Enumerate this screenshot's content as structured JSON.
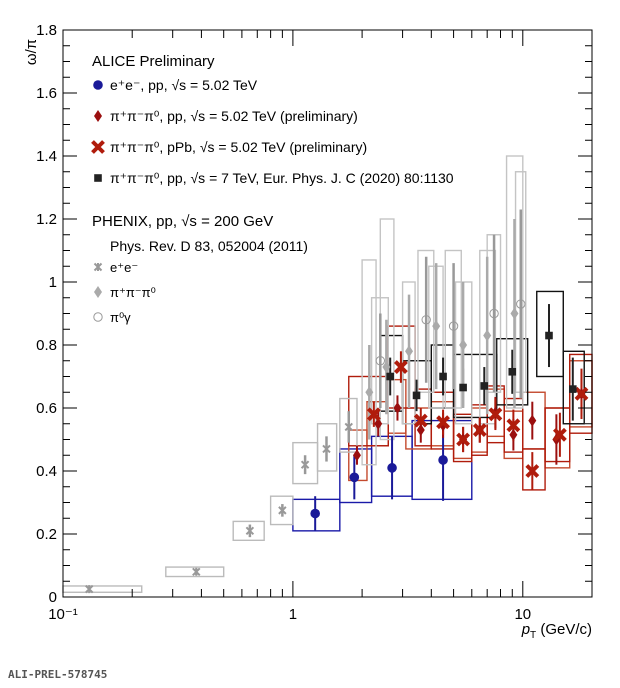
{
  "footer_label": "ALI-PREL-578745",
  "chart_data": {
    "type": "scatter",
    "title": "",
    "xlabel": "p_T (GeV/c)",
    "ylabel": "ω/π",
    "xscale": "log",
    "xlim": [
      0.1,
      20
    ],
    "ylim": [
      0,
      1.8
    ],
    "xticks": [
      {
        "v": 0.1,
        "label": "10⁻¹"
      },
      {
        "v": 1,
        "label": "1"
      },
      {
        "v": 10,
        "label": "10"
      }
    ],
    "yticks": [
      0,
      0.2,
      0.4,
      0.6,
      0.8,
      1,
      1.2,
      1.4,
      1.6,
      1.8
    ],
    "ytick_labels": [
      "0",
      "0.2",
      "0.4",
      "0.6",
      "0.8",
      "1",
      "1.2",
      "1.4",
      "1.6",
      "1.8"
    ],
    "legend": {
      "alice_header": "ALICE Preliminary",
      "phenix_header": "PHENIX, pp, √s = 200 GeV",
      "phenix_ref": "Phys. Rev. D 83, 052004 (2011)",
      "entries": [
        {
          "key": "ee502",
          "label": "e⁺e⁻, pp, √s = 5.02 TeV"
        },
        {
          "key": "pp502",
          "label": "π⁺π⁻π⁰, pp, √s = 5.02 TeV (preliminary)"
        },
        {
          "key": "ppb502",
          "label": "π⁺π⁻π⁰, pPb, √s = 5.02 TeV (preliminary)"
        },
        {
          "key": "pp7",
          "label": "π⁺π⁻π⁰, pp, √s = 7 TeV, Eur. Phys. J. C (2020) 80:1130"
        },
        {
          "key": "phx_ee",
          "label": "e⁺e⁻"
        },
        {
          "key": "phx_3pi",
          "label": "π⁺π⁻π⁰"
        },
        {
          "key": "phx_pig",
          "label": "π⁰γ"
        }
      ]
    },
    "series": [
      {
        "key": "ee502",
        "name": "e+e-, pp, 5.02 TeV",
        "color": "#1a1a99",
        "box_color": "#1a1aa8",
        "marker": "circle",
        "points": [
          {
            "x": 1.25,
            "y": 0.265,
            "stat": 0.055,
            "xlo": 1.0,
            "xhi": 1.6,
            "syslo": 0.21,
            "syshi": 0.31
          },
          {
            "x": 1.85,
            "y": 0.38,
            "stat": 0.07,
            "xlo": 1.6,
            "xhi": 2.2,
            "syslo": 0.3,
            "syshi": 0.47
          },
          {
            "x": 2.7,
            "y": 0.41,
            "stat": 0.1,
            "xlo": 2.2,
            "xhi": 3.3,
            "syslo": 0.32,
            "syshi": 0.51
          },
          {
            "x": 4.5,
            "y": 0.435,
            "stat": 0.13,
            "xlo": 3.3,
            "xhi": 6.0,
            "syslo": 0.31,
            "syshi": 0.56
          }
        ]
      },
      {
        "key": "pp502",
        "name": "3pi, pp, 5.02 TeV",
        "color": "#9b0f0f",
        "box_color": "#c44a2e",
        "marker": "diamond",
        "points": [
          {
            "x": 1.9,
            "y": 0.45,
            "stat": 0.03,
            "xlo": 1.75,
            "xhi": 2.1,
            "syslo": 0.37,
            "syshi": 0.53
          },
          {
            "x": 2.35,
            "y": 0.55,
            "stat": 0.04,
            "xlo": 2.1,
            "xhi": 2.6,
            "syslo": 0.48,
            "syshi": 0.62
          },
          {
            "x": 2.85,
            "y": 0.6,
            "stat": 0.04,
            "xlo": 2.6,
            "xhi": 3.1,
            "syslo": 0.52,
            "syshi": 0.69
          },
          {
            "x": 3.6,
            "y": 0.53,
            "stat": 0.04,
            "xlo": 3.1,
            "xhi": 4.0,
            "syslo": 0.47,
            "syshi": 0.6
          },
          {
            "x": 4.5,
            "y": 0.545,
            "stat": 0.04,
            "xlo": 4.0,
            "xhi": 5.0,
            "syslo": 0.48,
            "syshi": 0.62
          },
          {
            "x": 5.5,
            "y": 0.5,
            "stat": 0.04,
            "xlo": 5.0,
            "xhi": 6.0,
            "syslo": 0.44,
            "syshi": 0.57
          },
          {
            "x": 6.5,
            "y": 0.53,
            "stat": 0.04,
            "xlo": 6.0,
            "xhi": 7.0,
            "syslo": 0.46,
            "syshi": 0.6
          },
          {
            "x": 7.6,
            "y": 0.585,
            "stat": 0.05,
            "xlo": 7.0,
            "xhi": 8.3,
            "syslo": 0.51,
            "syshi": 0.66
          },
          {
            "x": 9.1,
            "y": 0.515,
            "stat": 0.05,
            "xlo": 8.3,
            "xhi": 10.0,
            "syslo": 0.44,
            "syshi": 0.59
          },
          {
            "x": 11.0,
            "y": 0.56,
            "stat": 0.06,
            "xlo": 10.0,
            "xhi": 12.5,
            "syslo": 0.47,
            "syshi": 0.65
          },
          {
            "x": 14.0,
            "y": 0.5,
            "stat": 0.08,
            "xlo": 12.5,
            "xhi": 16.0,
            "syslo": 0.41,
            "syshi": 0.6
          },
          {
            "x": 18.0,
            "y": 0.645,
            "stat": 0.07,
            "xlo": 16.0,
            "xhi": 20.0,
            "syslo": 0.54,
            "syshi": 0.75
          }
        ]
      },
      {
        "key": "ppb502",
        "name": "3pi, pPb, 5.02 TeV",
        "color": "#b01c0c",
        "box_color": "#b01c0c",
        "marker": "xcross",
        "points": [
          {
            "x": 2.25,
            "y": 0.58,
            "stat": 0.04,
            "xlo": 1.75,
            "xhi": 2.6,
            "syslo": 0.48,
            "syshi": 0.7
          },
          {
            "x": 2.95,
            "y": 0.73,
            "stat": 0.05,
            "xlo": 2.6,
            "xhi": 3.4,
            "syslo": 0.6,
            "syshi": 0.86
          },
          {
            "x": 3.6,
            "y": 0.56,
            "stat": 0.04,
            "xlo": 3.4,
            "xhi": 4.0,
            "syslo": 0.48,
            "syshi": 0.66
          },
          {
            "x": 4.5,
            "y": 0.555,
            "stat": 0.04,
            "xlo": 4.0,
            "xhi": 5.0,
            "syslo": 0.47,
            "syshi": 0.65
          },
          {
            "x": 5.5,
            "y": 0.5,
            "stat": 0.04,
            "xlo": 5.0,
            "xhi": 6.0,
            "syslo": 0.43,
            "syshi": 0.58
          },
          {
            "x": 6.5,
            "y": 0.53,
            "stat": 0.04,
            "xlo": 6.0,
            "xhi": 7.0,
            "syslo": 0.45,
            "syshi": 0.61
          },
          {
            "x": 7.6,
            "y": 0.58,
            "stat": 0.05,
            "xlo": 7.0,
            "xhi": 8.3,
            "syslo": 0.49,
            "syshi": 0.67
          },
          {
            "x": 9.1,
            "y": 0.545,
            "stat": 0.05,
            "xlo": 8.3,
            "xhi": 10.0,
            "syslo": 0.46,
            "syshi": 0.63
          },
          {
            "x": 11.0,
            "y": 0.4,
            "stat": 0.06,
            "xlo": 10.0,
            "xhi": 12.5,
            "syslo": 0.34,
            "syshi": 0.47
          },
          {
            "x": 14.5,
            "y": 0.515,
            "stat": 0.07,
            "xlo": 12.5,
            "xhi": 16.0,
            "syslo": 0.43,
            "syshi": 0.6
          },
          {
            "x": 18.0,
            "y": 0.645,
            "stat": 0.08,
            "xlo": 16.0,
            "xhi": 20.0,
            "syslo": 0.52,
            "syshi": 0.77
          }
        ]
      },
      {
        "key": "pp7",
        "name": "3pi, pp, 7 TeV",
        "color": "#222222",
        "box_color": "#111111",
        "marker": "square",
        "points": [
          {
            "x": 2.65,
            "y": 0.7,
            "stat": 0.06,
            "xlo": 2.4,
            "xhi": 3.0,
            "syslo": 0.59,
            "syshi": 0.83
          },
          {
            "x": 3.45,
            "y": 0.64,
            "stat": 0.05,
            "xlo": 3.0,
            "xhi": 4.0,
            "syslo": 0.55,
            "syshi": 0.75
          },
          {
            "x": 4.5,
            "y": 0.7,
            "stat": 0.06,
            "xlo": 4.0,
            "xhi": 5.0,
            "syslo": 0.6,
            "syshi": 0.8
          },
          {
            "x": 5.5,
            "y": 0.665,
            "stat": 0.06,
            "xlo": 5.0,
            "xhi": 6.0,
            "syslo": 0.57,
            "syshi": 0.77
          },
          {
            "x": 6.8,
            "y": 0.67,
            "stat": 0.06,
            "xlo": 6.0,
            "xhi": 7.7,
            "syslo": 0.57,
            "syshi": 0.77
          },
          {
            "x": 9.0,
            "y": 0.715,
            "stat": 0.07,
            "xlo": 7.7,
            "xhi": 10.5,
            "syslo": 0.61,
            "syshi": 0.82
          },
          {
            "x": 13.0,
            "y": 0.83,
            "stat": 0.1,
            "xlo": 11.5,
            "xhi": 15.0,
            "syslo": 0.7,
            "syshi": 0.97
          },
          {
            "x": 16.5,
            "y": 0.66,
            "stat": 0.1,
            "xlo": 15.0,
            "xhi": 18.5,
            "syslo": 0.55,
            "syshi": 0.78
          }
        ]
      },
      {
        "key": "phx_ee",
        "name": "PHENIX e+e-",
        "color": "#999999",
        "box_color": "#bbbbbb",
        "marker": "star",
        "points": [
          {
            "x": 0.13,
            "y": 0.025,
            "stat": 0.005,
            "xlo": 0.1,
            "xhi": 0.22,
            "syslo": 0.015,
            "syshi": 0.035
          },
          {
            "x": 0.38,
            "y": 0.08,
            "stat": 0.01,
            "xlo": 0.28,
            "xhi": 0.5,
            "syslo": 0.065,
            "syshi": 0.095
          },
          {
            "x": 0.65,
            "y": 0.21,
            "stat": 0.02,
            "xlo": 0.55,
            "xhi": 0.75,
            "syslo": 0.18,
            "syshi": 0.24
          },
          {
            "x": 0.9,
            "y": 0.275,
            "stat": 0.02,
            "xlo": 0.8,
            "xhi": 1.0,
            "syslo": 0.23,
            "syshi": 0.32
          },
          {
            "x": 1.13,
            "y": 0.42,
            "stat": 0.03,
            "xlo": 1.0,
            "xhi": 1.28,
            "syslo": 0.36,
            "syshi": 0.49
          },
          {
            "x": 1.4,
            "y": 0.47,
            "stat": 0.04,
            "xlo": 1.28,
            "xhi": 1.55,
            "syslo": 0.4,
            "syshi": 0.55
          },
          {
            "x": 1.75,
            "y": 0.54,
            "stat": 0.05,
            "xlo": 1.6,
            "xhi": 1.9,
            "syslo": 0.46,
            "syshi": 0.63
          }
        ]
      },
      {
        "key": "phx_3pi",
        "name": "PHENIX 3pi",
        "color": "#aaaaaa",
        "box_color": "#c4c4c4",
        "marker": "diamond",
        "points": [
          {
            "x": 2.15,
            "y": 0.65,
            "stat": 0.15,
            "xlo": 2.0,
            "xhi": 2.3,
            "syslo": 0.42,
            "syshi": 1.07
          },
          {
            "x": 2.55,
            "y": 0.73,
            "stat": 0.15,
            "xlo": 2.4,
            "xhi": 2.75,
            "syslo": 0.5,
            "syshi": 1.2
          },
          {
            "x": 3.2,
            "y": 0.78,
            "stat": 0.18,
            "xlo": 3.0,
            "xhi": 3.4,
            "syslo": 0.55,
            "syshi": 1.0
          },
          {
            "x": 4.2,
            "y": 0.86,
            "stat": 0.2,
            "xlo": 3.9,
            "xhi": 4.5,
            "syslo": 0.6,
            "syshi": 1.05
          },
          {
            "x": 5.5,
            "y": 0.8,
            "stat": 0.2,
            "xlo": 5.1,
            "xhi": 6.0,
            "syslo": 0.55,
            "syshi": 1.0
          },
          {
            "x": 7.0,
            "y": 0.83,
            "stat": 0.25,
            "xlo": 6.5,
            "xhi": 7.6,
            "syslo": 0.55,
            "syshi": 1.1
          },
          {
            "x": 9.2,
            "y": 0.9,
            "stat": 0.3,
            "xlo": 8.5,
            "xhi": 10.0,
            "syslo": 0.6,
            "syshi": 1.4
          }
        ]
      },
      {
        "key": "phx_pig",
        "name": "PHENIX pi0 gamma",
        "color": "#999999",
        "box_color": "#c4c4c4",
        "marker": "opencircle",
        "points": [
          {
            "x": 2.4,
            "y": 0.75,
            "stat": 0.15,
            "xlo": 2.2,
            "xhi": 2.6,
            "syslo": 0.55,
            "syshi": 0.95
          },
          {
            "x": 3.8,
            "y": 0.88,
            "stat": 0.2,
            "xlo": 3.5,
            "xhi": 4.1,
            "syslo": 0.65,
            "syshi": 1.1
          },
          {
            "x": 5.0,
            "y": 0.86,
            "stat": 0.2,
            "xlo": 4.6,
            "xhi": 5.4,
            "syslo": 0.6,
            "syshi": 1.1
          },
          {
            "x": 7.5,
            "y": 0.9,
            "stat": 0.25,
            "xlo": 7.0,
            "xhi": 8.0,
            "syslo": 0.65,
            "syshi": 1.15
          },
          {
            "x": 9.8,
            "y": 0.93,
            "stat": 0.3,
            "xlo": 9.3,
            "xhi": 10.3,
            "syslo": 0.65,
            "syshi": 1.35
          }
        ]
      }
    ]
  }
}
